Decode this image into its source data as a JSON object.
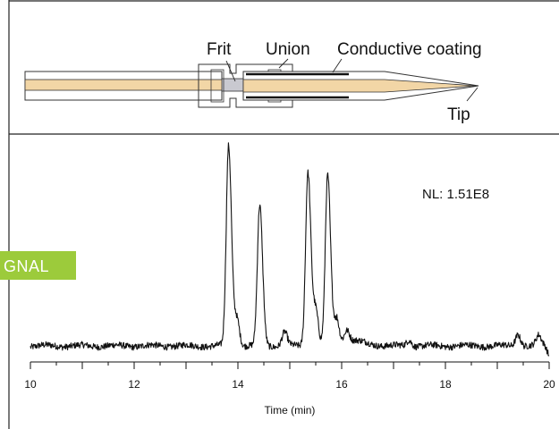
{
  "diagram": {
    "labels": {
      "frit": "Frit",
      "union": "Union",
      "coating": "Conductive coating",
      "tip": "Tip"
    }
  },
  "badge": {
    "text": "GNAL",
    "color": "#9ccb3b"
  },
  "chart_data": {
    "type": "line",
    "title": "",
    "annotation": "NL: 1.51E8",
    "xlabel": "Time (min)",
    "ylabel": "",
    "xlim": [
      10,
      20
    ],
    "ylim": [
      0,
      100
    ],
    "xticks": [
      10,
      12,
      14,
      16,
      18,
      20
    ],
    "grid": false,
    "baseline": 4,
    "noise": 1.6,
    "peaks": [
      {
        "rt": 13.82,
        "height": 100
      },
      {
        "rt": 14.42,
        "height": 70
      },
      {
        "rt": 15.35,
        "height": 87
      },
      {
        "rt": 15.73,
        "height": 85
      }
    ],
    "minor_features": [
      {
        "rt": 13.98,
        "height": 14
      },
      {
        "rt": 14.9,
        "height": 7
      },
      {
        "rt": 15.5,
        "height": 18
      },
      {
        "rt": 15.9,
        "height": 13
      },
      {
        "rt": 16.1,
        "height": 6
      },
      {
        "rt": 17.3,
        "height": 3
      },
      {
        "rt": 19.4,
        "height": 6
      },
      {
        "rt": 19.8,
        "height": 5
      }
    ]
  }
}
